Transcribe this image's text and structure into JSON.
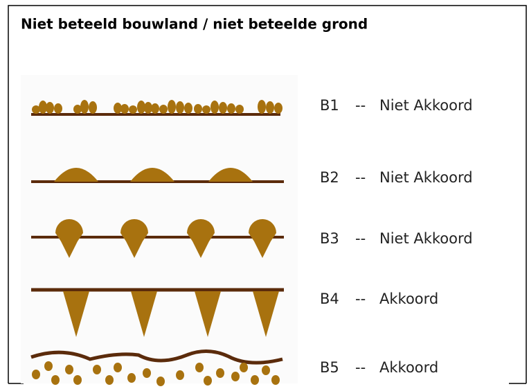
{
  "header": {
    "title": "Niet beteeld bouwland / niet beteelde grond"
  },
  "separator": "--",
  "items": [
    {
      "code": "B1",
      "status": "Niet Akkoord"
    },
    {
      "code": "B2",
      "status": "Niet Akkoord"
    },
    {
      "code": "B3",
      "status": "Niet Akkoord"
    },
    {
      "code": "B4",
      "status": "Akkoord"
    },
    {
      "code": "B5",
      "status": "Akkoord"
    }
  ]
}
